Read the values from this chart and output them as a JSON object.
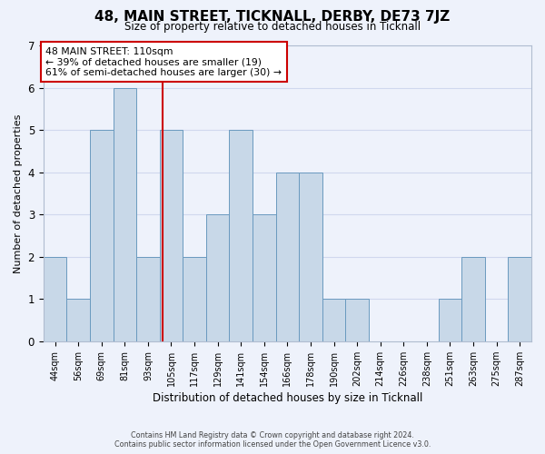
{
  "title": "48, MAIN STREET, TICKNALL, DERBY, DE73 7JZ",
  "subtitle": "Size of property relative to detached houses in Ticknall",
  "xlabel": "Distribution of detached houses by size in Ticknall",
  "ylabel": "Number of detached properties",
  "categories": [
    "44sqm",
    "56sqm",
    "69sqm",
    "81sqm",
    "93sqm",
    "105sqm",
    "117sqm",
    "129sqm",
    "141sqm",
    "154sqm",
    "166sqm",
    "178sqm",
    "190sqm",
    "202sqm",
    "214sqm",
    "226sqm",
    "238sqm",
    "251sqm",
    "263sqm",
    "275sqm",
    "287sqm"
  ],
  "values": [
    2,
    1,
    5,
    6,
    2,
    5,
    2,
    3,
    5,
    3,
    4,
    4,
    1,
    1,
    0,
    0,
    0,
    1,
    2,
    0,
    2
  ],
  "bar_color": "#c8d8e8",
  "bar_edge_color": "#6a9abf",
  "property_label": "48 MAIN STREET: 110sqm",
  "annotation_line1": "← 39% of detached houses are smaller (19)",
  "annotation_line2": "61% of semi-detached houses are larger (30) →",
  "vline_color": "#cc0000",
  "vline_x_index": 4.62,
  "annotation_box_color": "#ffffff",
  "annotation_box_edge": "#cc0000",
  "ylim": [
    0,
    7
  ],
  "yticks": [
    0,
    1,
    2,
    3,
    4,
    5,
    6,
    7
  ],
  "grid_color": "#d0d8ee",
  "background_color": "#eef2fb",
  "footer_line1": "Contains HM Land Registry data © Crown copyright and database right 2024.",
  "footer_line2": "Contains public sector information licensed under the Open Government Licence v3.0."
}
